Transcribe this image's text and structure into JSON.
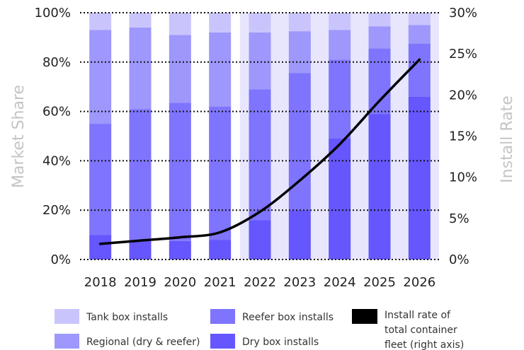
{
  "chart_data": {
    "type": "bar",
    "stacked": true,
    "categories": [
      "2018",
      "2019",
      "2020",
      "2021",
      "2022",
      "2023",
      "2024",
      "2025",
      "2026"
    ],
    "ylabel": "Market Share",
    "y2label": "Install Rate",
    "ylim": [
      0,
      100
    ],
    "y2lim": [
      0,
      30
    ],
    "y_ticks": [
      "0%",
      "20%",
      "40%",
      "60%",
      "80%",
      "100%"
    ],
    "y2_ticks": [
      "0%",
      "5%",
      "10%",
      "15%",
      "20%",
      "25%",
      "30%"
    ],
    "grid": "horizontal dotted",
    "projection_start": "2022",
    "series": [
      {
        "name": "Dry box installs",
        "color": "#6556fe",
        "values": [
          10,
          8,
          7.5,
          8,
          16,
          20,
          49,
          59,
          66
        ]
      },
      {
        "name": "Reefer box installs",
        "color": "#7f74fd",
        "values": [
          45,
          53,
          56,
          54,
          53,
          55.5,
          32,
          26.5,
          21.5
        ]
      },
      {
        "name": "Regional (dry & reefer)",
        "color": "#9e97fc",
        "values": [
          38,
          33,
          27.5,
          30,
          23,
          17,
          12,
          9,
          7.5
        ]
      },
      {
        "name": "Tank box installs",
        "color": "#c9c5fc",
        "values": [
          7,
          6,
          9,
          8,
          8,
          7.5,
          7,
          5.5,
          5
        ]
      }
    ],
    "line": {
      "name": "Install rate of total container fleet (right axis)",
      "color": "#000000",
      "values": [
        1.9,
        2.3,
        2.7,
        3.3,
        5.8,
        9.6,
        14,
        19.3,
        24.3
      ]
    },
    "legend": [
      {
        "label": "Tank box installs",
        "color": "#c9c5fc"
      },
      {
        "label": "Regional (dry & reefer)",
        "color": "#9e97fc"
      },
      {
        "label": "Reefer box installs",
        "color": "#7f74fd"
      },
      {
        "label": "Dry box installs",
        "color": "#6556fe"
      },
      {
        "label": "Install rate of total container fleet (right axis)",
        "color": "#000000",
        "lines": [
          "Install rate of",
          "total container",
          "fleet (right axis)"
        ]
      }
    ],
    "legend_placement": "bottom"
  }
}
